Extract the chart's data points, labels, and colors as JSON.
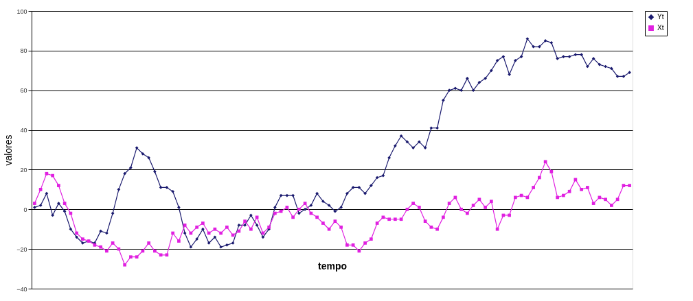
{
  "chart_data": {
    "type": "line",
    "xlabel": "tempo",
    "ylabel": "valores",
    "categories": [
      null,
      null,
      null,
      null,
      null,
      null,
      null,
      null,
      null,
      null,
      null,
      null,
      null,
      null,
      null,
      null,
      null,
      null,
      null,
      null,
      null,
      null,
      null,
      null,
      null,
      null,
      null,
      null,
      null,
      null,
      null,
      null,
      null,
      null,
      null,
      null,
      null,
      null,
      null,
      null,
      null,
      null,
      null,
      null,
      null,
      null,
      null,
      null,
      null,
      null,
      null,
      null,
      null,
      null,
      null,
      null,
      null,
      null,
      null,
      null,
      null,
      null,
      null,
      null,
      null,
      null,
      null,
      null,
      null,
      null,
      null,
      null,
      null,
      null,
      null,
      null,
      null,
      null,
      null,
      null,
      null,
      null,
      null,
      null,
      null,
      null,
      null,
      null,
      null,
      null,
      null,
      null,
      null,
      null,
      null,
      null,
      null,
      null,
      null,
      null
    ],
    "series": [
      {
        "name": "Yt",
        "color": "#1a1a6e",
        "marker": "diamond",
        "values": [
          1,
          2,
          8,
          -3,
          3,
          -1,
          -10,
          -14,
          -17,
          -16,
          -17,
          -11,
          -12,
          -2,
          10,
          18,
          21,
          31,
          28,
          26,
          19,
          11,
          11,
          9,
          1,
          -12,
          -19,
          -15,
          -10,
          -17,
          -14,
          -19,
          -18,
          -17,
          -8,
          -8,
          -3,
          -8,
          -14,
          -10,
          1,
          7,
          7,
          7,
          -2,
          0,
          2,
          8,
          4,
          2,
          -1,
          1,
          8,
          11,
          11,
          8,
          12,
          16,
          17,
          26,
          32,
          37,
          34,
          31,
          34,
          31,
          41,
          41,
          55,
          60,
          61,
          60,
          66,
          60,
          64,
          66,
          70,
          75,
          77,
          68,
          75,
          77,
          86,
          82,
          82,
          85,
          84,
          76,
          77,
          77,
          78,
          78,
          72,
          76,
          73,
          72,
          71,
          67,
          67,
          69
        ]
      },
      {
        "name": "Xt",
        "color": "#e020e0",
        "marker": "square",
        "values": [
          3,
          10,
          18,
          17,
          12,
          3,
          -2,
          -12,
          -15,
          -16,
          -18,
          -19,
          -21,
          -17,
          -20,
          -28,
          -24,
          -24,
          -21,
          -17,
          -21,
          -23,
          -23,
          -12,
          -16,
          -8,
          -12,
          -9,
          -7,
          -12,
          -10,
          -12,
          -9,
          -13,
          -11,
          -6,
          -10,
          -4,
          -12,
          -9,
          -2,
          -1,
          1,
          -4,
          0,
          3,
          -2,
          -4,
          -7,
          -10,
          -6,
          -9,
          -18,
          -18,
          -21,
          -17,
          -15,
          -7,
          -4,
          -5,
          -5,
          -5,
          0,
          3,
          1,
          -6,
          -9,
          -10,
          -4,
          3,
          6,
          0,
          -2,
          2,
          5,
          1,
          4,
          -10,
          -3,
          -3,
          6,
          7,
          6,
          11,
          16,
          24,
          19,
          6,
          7,
          9,
          15,
          10,
          11,
          3,
          6,
          5,
          2,
          5,
          12,
          12
        ]
      }
    ],
    "ylim": [
      -40,
      100
    ],
    "yticks": [
      -40,
      -20,
      0,
      20,
      40,
      60,
      80,
      100
    ],
    "grid": "y",
    "legend": "right",
    "line_style": "solid"
  }
}
